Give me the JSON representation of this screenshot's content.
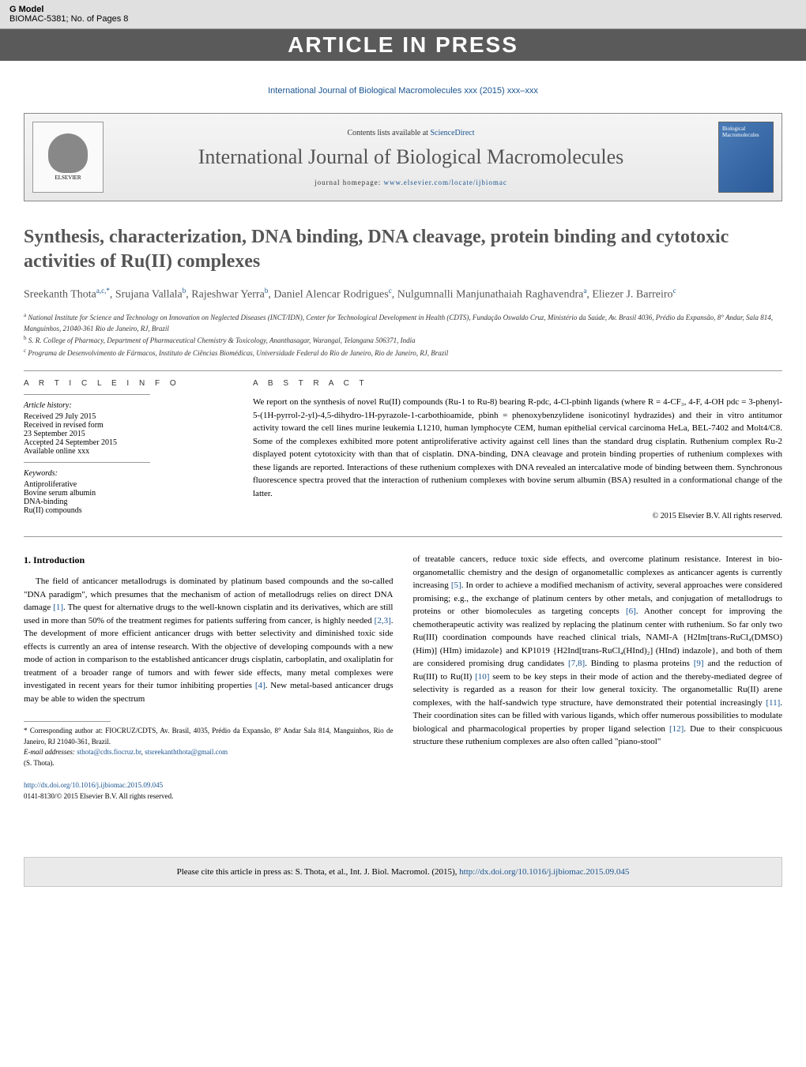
{
  "gmodel": {
    "label": "G Model",
    "code": "BIOMAC-5381;   No. of Pages 8"
  },
  "aip": "ARTICLE IN PRESS",
  "journal_ref": "International Journal of Biological Macromolecules xxx (2015) xxx–xxx",
  "header": {
    "contents_prefix": "Contents lists available at ",
    "sciencedirect": "ScienceDirect",
    "journal_name": "International Journal of Biological Macromolecules",
    "homepage_label": "journal homepage: ",
    "homepage_url": "www.elsevier.com/locate/ijbiomac",
    "elsevier": "ELSEVIER",
    "cover_text": "Biological Macromolecules"
  },
  "title": "Synthesis, characterization, DNA binding, DNA cleavage, protein binding and cytotoxic activities of Ru(II) complexes",
  "authors_html": "Sreekanth Thota<sup>a,c,*</sup>, Srujana Vallala<sup>b</sup>, Rajeshwar Yerra<sup>b</sup>, Daniel Alencar Rodrigues<sup>c</sup>, Nulgumnalli Manjunathaiah Raghavendra<sup>a</sup>, Eliezer J. Barreiro<sup>c</sup>",
  "affiliations": {
    "a": "National Institute for Science and Technology on Innovation on Neglected Diseases (INCT/IDN), Center for Technological Development in Health (CDTS), Fundação Oswaldo Cruz, Ministério da Saúde, Av. Brasil 4036, Prédio da Expansão, 8° Andar, Sala 814, Manguinhos, 21040-361 Rio de Janeiro, RJ, Brazil",
    "b": "S. R. College of Pharmacy, Department of Pharmaceutical Chemistry & Toxicology, Ananthasagar, Warangal, Telangana 506371, India",
    "c": "Programa de Desenvolvimento de Fármacos, Instituto de Ciências Biomédicas, Universidade Federal do Rio de Janeiro, Rio de Janeiro, RJ, Brazil"
  },
  "info": {
    "heading": "A R T I C L E   I N F O",
    "history_label": "Article history:",
    "received": "Received 29 July 2015",
    "revised1": "Received in revised form",
    "revised2": "23 September 2015",
    "accepted": "Accepted 24 September 2015",
    "online": "Available online xxx",
    "keywords_label": "Keywords:",
    "kw1": "Antiproliferative",
    "kw2": "Bovine serum albumin",
    "kw3": "DNA-binding",
    "kw4": "Ru(II) compounds"
  },
  "abstract": {
    "heading": "A B S T R A C T",
    "text": "We report on the synthesis of novel Ru(II) compounds (Ru-1 to Ru-8) bearing R-pdc, 4-Cl-pbinh ligands (where R = 4-CF₃, 4-F, 4-OH pdc = 3-phenyl-5-(1H-pyrrol-2-yl)-4,5-dihydro-1H-pyrazole-1-carbothioamide, pbinh = phenoxybenzylidene isonicotinyl hydrazides) and their in vitro antitumor activity toward the cell lines murine leukemia L1210, human lymphocyte CEM, human epithelial cervical carcinoma HeLa, BEL-7402 and Molt4/C8. Some of the complexes exhibited more potent antiproliferative activity against cell lines than the standard drug cisplatin. Ruthenium complex Ru-2 displayed potent cytotoxicity with than that of cisplatin. DNA-binding, DNA cleavage and protein binding properties of ruthenium complexes with these ligands are reported. Interactions of these ruthenium complexes with DNA revealed an intercalative mode of binding between them. Synchronous fluorescence spectra proved that the interaction of ruthenium complexes with bovine serum albumin (BSA) resulted in a conformational change of the latter.",
    "copyright": "© 2015 Elsevier B.V. All rights reserved."
  },
  "section1": {
    "heading": "1.  Introduction",
    "col1_parts": [
      "The field of anticancer metallodrugs is dominated by platinum based compounds and the so-called \"DNA paradigm\", which presumes that the mechanism of action of metallodrugs relies on direct DNA damage ",
      ". The quest for alternative drugs to the well-known cisplatin and its derivatives, which are still used in more than 50% of the treatment regimes for patients suffering from cancer, is highly needed ",
      ". The development of more efficient anticancer drugs with better selectivity and diminished toxic side effects is currently an area of intense research. With the objective of developing compounds with a new mode of action in comparison to the established anticancer drugs cisplatin, carboplatin, and oxaliplatin for treatment of a broader range of tumors and with fewer side effects, many metal complexes were investigated in recent years for their tumor inhibiting properties ",
      ". New metal-based anticancer drugs may be able to widen the spectrum"
    ],
    "refs_col1": [
      "[1]",
      "[2,3]",
      "[4]"
    ],
    "col2_parts": [
      "of treatable cancers, reduce toxic side effects, and overcome platinum resistance. Interest in bio-organometallic chemistry and the design of organometallic complexes as anticancer agents is currently increasing ",
      ". In order to achieve a modified mechanism of activity, several approaches were considered promising; e.g., the exchange of platinum centers by other metals, and conjugation of metallodrugs to proteins or other biomolecules as targeting concepts ",
      ". Another concept for improving the chemotherapeutic activity was realized by replacing the platinum center with ruthenium. So far only two Ru(III) coordination compounds have reached clinical trials, NAMI-A {H2Im[trans-RuCl₄(DMSO)(Him)] (HIm) imidazole} and KP1019 {H2Ind[trans-RuCl₄(HInd)₂] (HInd) indazole}, and both of them are considered promising drug candidates ",
      ". Binding to plasma proteins ",
      " and the reduction of Ru(III) to Ru(II) ",
      " seem to be key steps in their mode of action and the thereby-mediated degree of selectivity is regarded as a reason for their low general toxicity. The organometallic Ru(II) arene complexes, with the half-sandwich type structure, have demonstrated their potential increasingly ",
      ". Their coordination sites can be filled with various ligands, which offer numerous possibilities to modulate biological and pharmacological properties by proper ligand selection ",
      ". Due to their conspicuous structure these ruthenium complexes are also often called \"piano-stool\""
    ],
    "refs_col2": [
      "[5]",
      "[6]",
      "[7,8]",
      "[9]",
      "[10]",
      "[11]",
      "[12]"
    ]
  },
  "footnotes": {
    "corr": "* Corresponding author at: FIOCRUZ/CDTS, Av. Brasil, 4035, Prédio da Expansão, 8° Andar Sala 814, Manguinhos, Rio de Janeiro, RJ 21040-361, Brazil.",
    "email_label": "E-mail addresses: ",
    "email1": "sthota@cdts.fiocruz.br",
    "email_sep": ", ",
    "email2": "stsreekanththota@gmail.com",
    "author": "(S. Thota)."
  },
  "doi": {
    "url": "http://dx.doi.org/10.1016/j.ijbiomac.2015.09.045",
    "issn": "0141-8130/© 2015 Elsevier B.V. All rights reserved."
  },
  "citebox": {
    "prefix": "Please cite this article in press as: S. Thota, et al., Int. J. Biol. Macromol. (2015), ",
    "url": "http://dx.doi.org/10.1016/j.ijbiomac.2015.09.045"
  },
  "colors": {
    "link": "#1a5490",
    "aip_bg": "#5a5a5a",
    "heading_text": "#555555"
  }
}
